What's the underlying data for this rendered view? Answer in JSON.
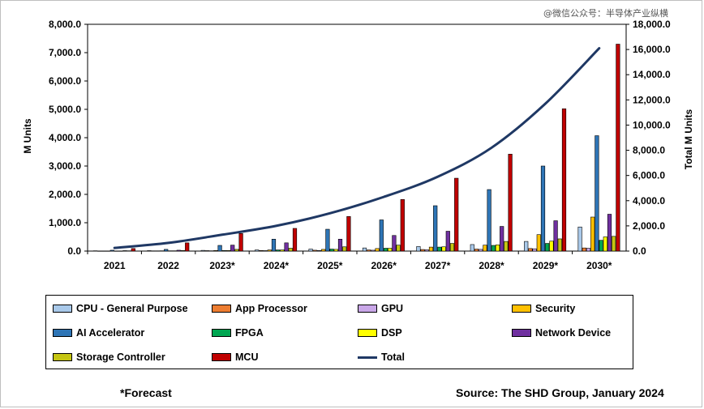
{
  "watermark": "@微信公众号：半导体产业纵横",
  "note": "*Forecast",
  "source": "Source: The SHD Group, January 2024",
  "chart_data": {
    "type": "bar",
    "categories": [
      "2021",
      "2022",
      "2023*",
      "2024*",
      "2025*",
      "2026*",
      "2027*",
      "2028*",
      "2029*",
      "2030*"
    ],
    "ylabel": "M Units",
    "y2label": "Total M Units",
    "ylim": [
      0,
      8000
    ],
    "y2lim": [
      0,
      18000
    ],
    "yticks": [
      "8,000.0",
      "7,000.0",
      "6,000.0",
      "5,000.0",
      "4,000.0",
      "3,000.0",
      "2,000.0",
      "1,000.0",
      "0.0"
    ],
    "y2ticks": [
      "18,000.0",
      "16,000.0",
      "14,000.0",
      "12,000.0",
      "10,000.0",
      "8,000.0",
      "6,000.0",
      "4,000.0",
      "2,000.0",
      "0.0"
    ],
    "grid": false,
    "legend_position": "bottom",
    "series": [
      {
        "name": "CPU - General Purpose",
        "color": "#a9c9ea",
        "values": [
          10,
          15,
          25,
          40,
          70,
          110,
          160,
          230,
          340,
          850
        ]
      },
      {
        "name": "App Processor",
        "color": "#ed7d31",
        "values": [
          5,
          8,
          15,
          20,
          30,
          40,
          55,
          70,
          90,
          110
        ]
      },
      {
        "name": "GPU",
        "color": "#c9a7e8",
        "values": [
          5,
          8,
          10,
          15,
          20,
          30,
          45,
          60,
          80,
          100
        ]
      },
      {
        "name": "Security",
        "color": "#ffc000",
        "values": [
          5,
          10,
          20,
          40,
          60,
          90,
          140,
          210,
          580,
          1200
        ]
      },
      {
        "name": "AI Accelerator",
        "color": "#2e75b6",
        "values": [
          30,
          60,
          200,
          420,
          770,
          1100,
          1600,
          2170,
          3000,
          4070
        ]
      },
      {
        "name": "FPGA",
        "color": "#00a651",
        "values": [
          5,
          10,
          20,
          40,
          70,
          100,
          140,
          200,
          270,
          380
        ]
      },
      {
        "name": "DSP",
        "color": "#ffff00",
        "values": [
          5,
          10,
          20,
          40,
          60,
          100,
          150,
          220,
          350,
          500
        ]
      },
      {
        "name": "Network Device",
        "color": "#7030a0",
        "values": [
          15,
          30,
          210,
          290,
          420,
          550,
          700,
          870,
          1070,
          1300
        ]
      },
      {
        "name": "Storage Controller",
        "color": "#c5c512",
        "values": [
          10,
          20,
          60,
          100,
          150,
          210,
          270,
          340,
          430,
          520
        ]
      },
      {
        "name": "MCU",
        "color": "#c00000",
        "values": [
          90,
          290,
          620,
          800,
          1220,
          1820,
          2570,
          3420,
          5020,
          7300
        ]
      }
    ],
    "total": {
      "name": "Total",
      "color": "#1f3864",
      "values": [
        250,
        650,
        1300,
        2000,
        3000,
        4300,
        5900,
        8200,
        11700,
        16100
      ]
    }
  }
}
